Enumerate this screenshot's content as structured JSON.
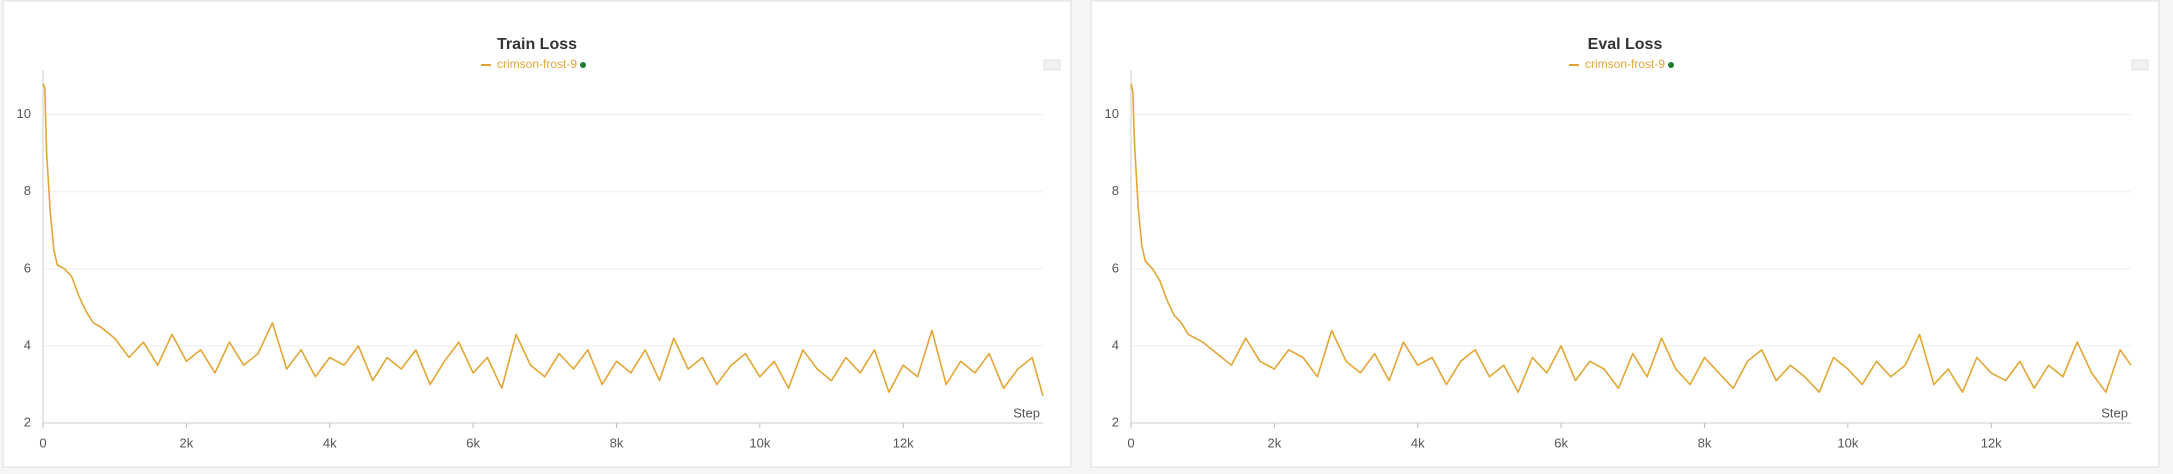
{
  "chart_data": [
    {
      "type": "line",
      "title": "Train Loss",
      "x_label": "Step",
      "x": [
        0,
        25,
        50,
        100,
        150,
        200,
        300,
        400,
        500,
        600,
        700,
        800,
        1000,
        1200,
        1400,
        1600,
        1800,
        2000,
        2200,
        2400,
        2600,
        2800,
        3000,
        3200,
        3400,
        3600,
        3800,
        4000,
        4200,
        4400,
        4600,
        4800,
        5000,
        5200,
        5400,
        5600,
        5800,
        6000,
        6200,
        6400,
        6600,
        6800,
        7000,
        7200,
        7400,
        7600,
        7800,
        8000,
        8200,
        8400,
        8600,
        8800,
        9000,
        9200,
        9400,
        9600,
        9800,
        10000,
        10200,
        10400,
        10600,
        10800,
        11000,
        11200,
        11400,
        11600,
        11800,
        12000,
        12200,
        12400,
        12600,
        12800,
        13000,
        13200,
        13400,
        13600,
        13800,
        13950
      ],
      "series": [
        {
          "name": "crimson-frost-9",
          "color": "#e3a635",
          "values": [
            10.8,
            10.7,
            9,
            7.5,
            6.5,
            6.1,
            6,
            5.8,
            5.3,
            4.9,
            4.6,
            4.5,
            4.2,
            3.7,
            4.1,
            3.5,
            4.3,
            3.6,
            3.9,
            3.3,
            4.1,
            3.5,
            3.8,
            4.6,
            3.4,
            3.9,
            3.2,
            3.7,
            3.5,
            4,
            3.1,
            3.7,
            3.4,
            3.9,
            3,
            3.6,
            4.1,
            3.3,
            3.7,
            2.9,
            4.3,
            3.5,
            3.2,
            3.8,
            3.4,
            3.9,
            3,
            3.6,
            3.3,
            3.9,
            3.1,
            4.2,
            3.4,
            3.7,
            3,
            3.5,
            3.8,
            3.2,
            3.6,
            2.9,
            3.9,
            3.4,
            3.1,
            3.7,
            3.3,
            3.9,
            2.8,
            3.5,
            3.2,
            4.4,
            3,
            3.6,
            3.3,
            3.8,
            2.9,
            3.4,
            3.7,
            2.7
          ]
        }
      ],
      "xlim": [
        0,
        13950
      ],
      "ylim": [
        2,
        10.9
      ],
      "xticks": [
        0,
        {
          "value": 2000,
          "label": "2k"
        },
        {
          "value": 4000,
          "label": "4k"
        },
        {
          "value": 6000,
          "label": "6k"
        },
        {
          "value": 8000,
          "label": "8k"
        },
        {
          "value": 10000,
          "label": "10k"
        },
        {
          "value": 12000,
          "label": "12k"
        }
      ],
      "yticks": [
        2,
        4,
        6,
        8,
        10
      ],
      "grid": true
    },
    {
      "type": "line",
      "title": "Eval Loss",
      "x_label": "Step",
      "x": [
        0,
        25,
        50,
        100,
        150,
        200,
        300,
        400,
        500,
        600,
        700,
        800,
        1000,
        1200,
        1400,
        1600,
        1800,
        2000,
        2200,
        2400,
        2600,
        2800,
        3000,
        3200,
        3400,
        3600,
        3800,
        4000,
        4200,
        4400,
        4600,
        4800,
        5000,
        5200,
        5400,
        5600,
        5800,
        6000,
        6200,
        6400,
        6600,
        6800,
        7000,
        7200,
        7400,
        7600,
        7800,
        8000,
        8200,
        8400,
        8600,
        8800,
        9000,
        9200,
        9400,
        9600,
        9800,
        10000,
        10200,
        10400,
        10600,
        10800,
        11000,
        11200,
        11400,
        11600,
        11800,
        12000,
        12200,
        12400,
        12600,
        12800,
        13000,
        13200,
        13400,
        13600,
        13800,
        13950
      ],
      "series": [
        {
          "name": "crimson-frost-9",
          "color": "#e3a635",
          "values": [
            10.8,
            10.6,
            9.2,
            7.6,
            6.6,
            6.2,
            6,
            5.7,
            5.2,
            4.8,
            4.6,
            4.3,
            4.1,
            3.8,
            3.5,
            4.2,
            3.6,
            3.4,
            3.9,
            3.7,
            3.2,
            4.4,
            3.6,
            3.3,
            3.8,
            3.1,
            4.1,
            3.5,
            3.7,
            3,
            3.6,
            3.9,
            3.2,
            3.5,
            2.8,
            3.7,
            3.3,
            4,
            3.1,
            3.6,
            3.4,
            2.9,
            3.8,
            3.2,
            4.2,
            3.4,
            3,
            3.7,
            3.3,
            2.9,
            3.6,
            3.9,
            3.1,
            3.5,
            3.2,
            2.8,
            3.7,
            3.4,
            3,
            3.6,
            3.2,
            3.5,
            4.3,
            3,
            3.4,
            2.8,
            3.7,
            3.3,
            3.1,
            3.6,
            2.9,
            3.5,
            3.2,
            4.1,
            3.3,
            2.8,
            3.9,
            3.5
          ]
        }
      ],
      "xlim": [
        0,
        13950
      ],
      "ylim": [
        2,
        10.9
      ],
      "xticks": [
        0,
        {
          "value": 2000,
          "label": "2k"
        },
        {
          "value": 4000,
          "label": "4k"
        },
        {
          "value": 6000,
          "label": "6k"
        },
        {
          "value": 8000,
          "label": "8k"
        },
        {
          "value": 10000,
          "label": "10k"
        },
        {
          "value": 12000,
          "label": "12k"
        }
      ],
      "yticks": [
        2,
        4,
        6,
        8,
        10
      ],
      "grid": true
    }
  ]
}
